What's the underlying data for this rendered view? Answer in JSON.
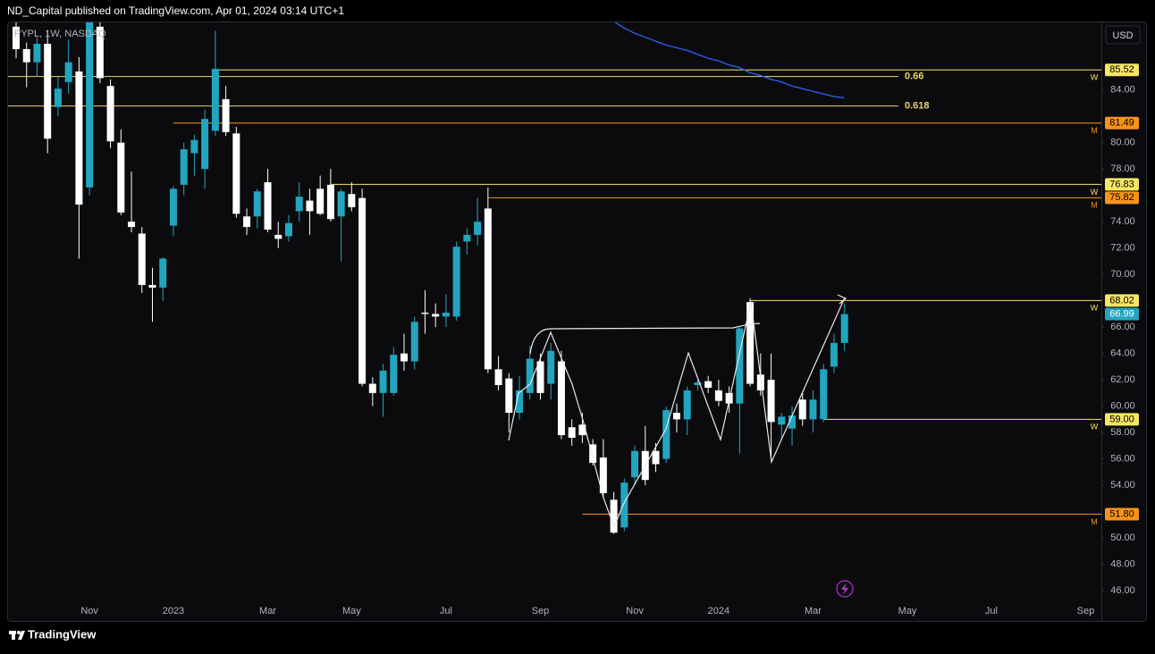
{
  "header": {
    "publisher": "ND_Capital published on TradingView.com, Apr 01, 2024 03:14 UTC+1",
    "brand": "TradingView"
  },
  "chart_data": {
    "type": "candlestick",
    "symbol": "PYPL, 1W, NASDAQ",
    "currency": "USD",
    "up_color": "#22a6c0",
    "down_color": "#ffffff",
    "categories": [
      null,
      null,
      null,
      null,
      null,
      null,
      null,
      "Nov",
      null,
      null,
      null,
      null,
      null,
      null,
      null,
      "2023",
      null,
      null,
      null,
      null,
      null,
      null,
      null,
      null,
      "Mar",
      null,
      null,
      null,
      null,
      null,
      null,
      null,
      "May",
      null,
      null,
      null,
      null,
      null,
      null,
      null,
      null,
      "Jul",
      null,
      null,
      null,
      null,
      null,
      null,
      null,
      null,
      "Sep",
      null,
      null,
      null,
      null,
      null,
      null,
      null,
      null,
      "Nov",
      null,
      null,
      null,
      null,
      null,
      null,
      null,
      "2024",
      null,
      null,
      null,
      null,
      null,
      null,
      null,
      null,
      "Mar",
      null,
      null,
      null,
      null,
      null,
      null,
      null,
      null,
      "May",
      null,
      null,
      null,
      null,
      null,
      null,
      null,
      "Jul",
      null,
      null,
      null,
      null,
      null,
      null,
      null,
      null,
      "Sep",
      null
    ],
    "open": [
      88.8,
      87.1,
      86.1,
      87.5,
      82.7,
      84.6,
      85.4,
      76.6,
      88.8,
      84.3,
      80.0,
      74.0,
      73.1,
      69.2,
      69.0,
      73.7,
      76.8,
      79.2,
      78.0,
      80.9,
      83.3,
      80.7,
      74.4,
      74.4,
      77.0,
      73.0,
      72.9,
      74.8,
      75.6,
      76.5,
      76.8,
      74.4,
      76.1,
      75.8,
      61.7,
      61.0,
      61.0,
      64.0,
      63.4,
      67.1,
      67.0,
      66.8,
      66.8,
      72.5,
      73.0,
      75.0,
      62.8,
      62.1,
      59.5,
      61.0,
      63.4,
      61.7,
      63.4,
      58.4,
      58.6,
      57.1,
      56.1,
      52.9,
      50.8,
      54.6,
      56.6,
      56.6,
      56.0,
      59.5,
      59.0,
      61.6,
      61.9,
      61.2,
      61.0,
      60.2,
      67.9,
      62.4,
      62.0,
      58.6,
      58.3,
      60.5,
      59.0,
      59.0,
      63.0,
      64.8,
      null,
      null,
      null,
      null,
      null,
      null,
      null,
      null,
      null,
      null,
      null,
      null,
      null,
      null,
      null,
      null,
      null,
      null,
      null,
      null,
      null,
      null,
      null,
      null
    ],
    "high": [
      89.5,
      87.6,
      88.0,
      88.5,
      85.0,
      87.8,
      86.5,
      91.0,
      89.5,
      84.8,
      81.0,
      77.8,
      73.6,
      70.5,
      71.3,
      76.7,
      80.0,
      80.6,
      82.5,
      88.5,
      84.3,
      81.2,
      75.0,
      76.5,
      78.0,
      74.0,
      74.5,
      77.0,
      76.5,
      77.5,
      78.0,
      76.5,
      77.0,
      76.5,
      62.2,
      63.2,
      64.5,
      65.5,
      66.8,
      68.8,
      67.8,
      68.5,
      72.5,
      73.5,
      75.8,
      76.6,
      63.8,
      62.5,
      62.3,
      64.6,
      64.0,
      64.8,
      64.2,
      59.0,
      59.5,
      57.5,
      57.5,
      53.5,
      54.5,
      57.0,
      58.5,
      57.2,
      60.0,
      60.2,
      61.5,
      62.0,
      62.3,
      62.0,
      61.5,
      66.0,
      68.2,
      64.0,
      64.0,
      59.5,
      60.0,
      61.0,
      61.2,
      63.2,
      65.5,
      67.8,
      null,
      null,
      null,
      null,
      null,
      null,
      null,
      null,
      null,
      null,
      null,
      null,
      null,
      null,
      null,
      null,
      null,
      null,
      null,
      null,
      null,
      null,
      null,
      null
    ],
    "low": [
      86.4,
      84.2,
      85.0,
      79.2,
      82.0,
      83.7,
      71.2,
      76.0,
      84.5,
      79.6,
      74.5,
      73.2,
      68.6,
      66.4,
      68.0,
      72.9,
      76.0,
      77.5,
      76.5,
      80.5,
      80.5,
      74.3,
      73.0,
      73.5,
      73.2,
      72.0,
      72.5,
      74.0,
      73.0,
      74.5,
      74.0,
      71.0,
      74.8,
      61.5,
      60.0,
      59.2,
      60.8,
      62.7,
      62.8,
      65.5,
      66.0,
      66.0,
      66.5,
      71.5,
      72.2,
      62.5,
      61.2,
      58.0,
      59.0,
      60.5,
      60.5,
      60.5,
      57.5,
      57.0,
      57.2,
      55.5,
      53.0,
      50.3,
      50.5,
      54.0,
      54.0,
      55.0,
      55.7,
      58.0,
      57.8,
      61.2,
      61.0,
      60.0,
      59.5,
      56.4,
      61.5,
      60.8,
      56.0,
      57.5,
      57.0,
      58.5,
      58.0,
      58.8,
      62.5,
      64.2,
      null,
      null,
      null,
      null,
      null,
      null,
      null,
      null,
      null,
      null,
      null,
      null,
      null,
      null,
      null,
      null,
      null,
      null,
      null,
      null,
      null,
      null,
      null,
      null
    ],
    "close": [
      87.1,
      86.1,
      87.5,
      80.3,
      84.1,
      86.1,
      75.3,
      90.2,
      84.9,
      80.1,
      74.7,
      73.6,
      69.2,
      69.0,
      71.2,
      76.5,
      79.5,
      80.2,
      81.8,
      85.6,
      80.8,
      74.6,
      73.6,
      76.3,
      73.4,
      72.7,
      73.9,
      75.9,
      74.8,
      74.6,
      74.2,
      76.3,
      75.1,
      61.7,
      61.0,
      62.7,
      63.9,
      63.4,
      66.4,
      67.0,
      66.8,
      67.1,
      72.1,
      73.0,
      74.0,
      62.8,
      61.6,
      59.5,
      61.2,
      63.6,
      61.0,
      64.2,
      57.8,
      57.6,
      57.8,
      55.7,
      53.4,
      50.4,
      54.2,
      56.6,
      54.4,
      55.6,
      59.7,
      59.0,
      61.2,
      61.8,
      61.4,
      60.4,
      60.2,
      65.9,
      61.7,
      61.2,
      58.8,
      59.2,
      59.3,
      59.0,
      60.5,
      62.8,
      64.8,
      66.99,
      null,
      null,
      null,
      null,
      null,
      null,
      null,
      null,
      null,
      null,
      null,
      null,
      null,
      null,
      null,
      null,
      null,
      null,
      null,
      null,
      null,
      null,
      null,
      null
    ],
    "last_price_label": "66.99",
    "overlay": {
      "color": "#2962ff",
      "values": [
        null,
        null,
        null,
        null,
        null,
        null,
        null,
        null,
        null,
        null,
        null,
        null,
        null,
        null,
        null,
        null,
        null,
        null,
        null,
        null,
        null,
        null,
        null,
        null,
        null,
        null,
        null,
        null,
        null,
        null,
        null,
        null,
        null,
        null,
        null,
        null,
        null,
        null,
        null,
        null,
        null,
        null,
        null,
        null,
        null,
        null,
        null,
        null,
        null,
        null,
        null,
        null,
        null,
        null,
        null,
        null,
        null,
        89.2,
        88.7,
        88.3,
        88.0,
        87.7,
        87.4,
        87.2,
        87.0,
        86.7,
        86.4,
        86.2,
        85.9,
        85.7,
        85.3,
        85.1,
        84.8,
        84.6,
        84.3,
        84.1,
        83.9,
        83.7,
        83.5,
        83.4,
        null,
        null,
        null,
        null,
        null,
        null,
        null,
        null,
        null,
        null,
        null,
        null,
        null,
        null,
        null,
        null,
        null,
        null,
        null,
        null,
        null,
        null,
        null,
        null
      ]
    },
    "levels": {
      "values": [
        85.52,
        81.49,
        76.83,
        75.82,
        68.02,
        59.0,
        51.8
      ],
      "value_labels": [
        "85.52",
        "81.49",
        "76.83",
        "75.82",
        "68.02",
        "59.00",
        "51.80"
      ],
      "tags": [
        "W",
        "M",
        "W",
        "M",
        "W",
        "W",
        "M"
      ],
      "colors": [
        "#f5e663",
        "#f7931a",
        "#f5e663",
        "#f7931a",
        "#f5e663",
        "#f5e663",
        "#f7931a"
      ]
    },
    "fib_levels": [
      {
        "ratio": 0.66,
        "price": 85.02
      },
      {
        "ratio": 0.618,
        "price": 82.78
      }
    ],
    "fib_color": "#e8d56a",
    "ylim": [
      43.7,
      89.2
    ],
    "yticks": [
      {
        "value": 46,
        "label": "46.00"
      },
      {
        "value": 48,
        "label": "48.00"
      },
      {
        "value": 50,
        "label": "50.00"
      },
      {
        "value": 54,
        "label": "54.00"
      },
      {
        "value": 56,
        "label": "56.00"
      },
      {
        "value": 58,
        "label": "58.00"
      },
      {
        "value": 60,
        "label": "60.00"
      },
      {
        "value": 62,
        "label": "62.00"
      },
      {
        "value": 64,
        "label": "64.00"
      },
      {
        "value": 66,
        "label": "66.00"
      },
      {
        "value": 70,
        "label": "70.00"
      },
      {
        "value": 72,
        "label": "72.00"
      },
      {
        "value": 74,
        "label": "74.00"
      },
      {
        "value": 78,
        "label": "78.00"
      },
      {
        "value": 80,
        "label": "80.00"
      },
      {
        "value": 84,
        "label": "84.00"
      }
    ],
    "grid": false
  }
}
